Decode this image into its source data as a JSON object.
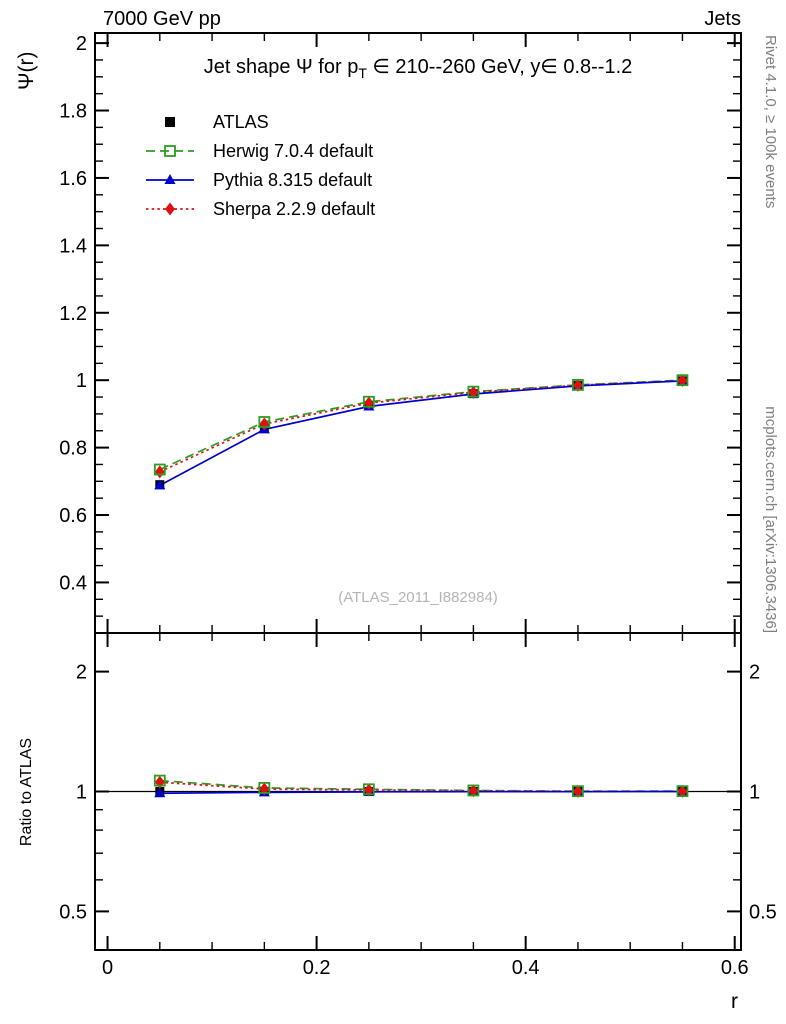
{
  "header": {
    "left": "7000 GeV pp",
    "right": "Jets"
  },
  "side_text_top": "Rivet 4.1.0, ≥ 100k events",
  "side_text_bottom": "mcplots.cern.ch [arXiv:1306.3436]",
  "watermark": "(ATLAS_2011_I882984)",
  "chart_data": {
    "type": "line",
    "title": "Jet shape Ψ for p_T ∈ 210--260 GeV, y∈ 0.8--1.2",
    "title_parts": {
      "pre": "Jet shape Ψ for p",
      "sub": "T",
      "post": " ∈ 210--260 GeV, y∈ 0.8--1.2"
    },
    "xlabel": "r",
    "ylabel": "Ψ(r)",
    "ratio_ylabel": "Ratio to ATLAS",
    "xlim": [
      -0.012,
      0.606
    ],
    "xticks": [
      [
        0,
        "0"
      ],
      [
        0.2,
        "0.2"
      ],
      [
        0.4,
        "0.4"
      ],
      [
        0.6,
        "0.6"
      ]
    ],
    "x_minor_step": 0.05,
    "main_ylim": [
      0.25,
      2.03
    ],
    "main_yticks": [
      [
        0.4,
        "0.4"
      ],
      [
        0.6,
        "0.6"
      ],
      [
        0.8,
        "0.8"
      ],
      [
        1,
        "1"
      ],
      [
        1.2,
        "1.2"
      ],
      [
        1.4,
        "1.4"
      ],
      [
        1.6,
        "1.6"
      ],
      [
        1.8,
        "1.8"
      ],
      [
        2,
        "2"
      ]
    ],
    "main_y_minor_step": 0.05,
    "ratio_scale": "log",
    "ratio_ylim": [
      0.4,
      2.5
    ],
    "ratio_yticks": [
      [
        0.5,
        "0.5"
      ],
      [
        1,
        "1"
      ],
      [
        2,
        "2"
      ]
    ],
    "ratio_y_minor": [
      0.4,
      0.6,
      0.7,
      0.8,
      0.9
    ],
    "x": [
      0.05,
      0.15,
      0.25,
      0.35,
      0.45,
      0.55
    ],
    "series": [
      {
        "name": "ATLAS",
        "color": "#000000",
        "marker": "square",
        "open": false,
        "line": "none",
        "values": [
          0.69,
          0.858,
          0.924,
          0.96,
          0.984,
          0.998
        ],
        "ratio": [
          1.0,
          1.0,
          1.0,
          1.0,
          1.0,
          1.0
        ]
      },
      {
        "name": "Herwig 7.0.4 default",
        "color": "#2e9c23",
        "marker": "square",
        "open": true,
        "line": "dashed",
        "values": [
          0.735,
          0.876,
          0.936,
          0.966,
          0.986,
          1.0
        ],
        "ratio": [
          1.065,
          1.021,
          1.013,
          1.006,
          1.002,
          1.002
        ]
      },
      {
        "name": "Pythia 8.315 default",
        "color": "#0000cd",
        "marker": "triangle",
        "open": false,
        "line": "solid",
        "values": [
          0.688,
          0.854,
          0.922,
          0.959,
          0.983,
          0.998
        ],
        "ratio": [
          0.99,
          0.995,
          0.998,
          0.999,
          0.999,
          1.0
        ]
      },
      {
        "name": "Sherpa 2.2.9 default",
        "color": "#dd1111",
        "marker": "diamond",
        "open": false,
        "line": "dotted",
        "values": [
          0.728,
          0.87,
          0.932,
          0.964,
          0.985,
          0.999
        ],
        "ratio": [
          1.055,
          1.014,
          1.009,
          1.004,
          1.001,
          1.001
        ]
      }
    ],
    "line_draw_order": [
      1,
      3,
      2
    ],
    "marker_draw_order": [
      0,
      2,
      3,
      1
    ],
    "legend_order": [
      0,
      1,
      2,
      3
    ]
  }
}
